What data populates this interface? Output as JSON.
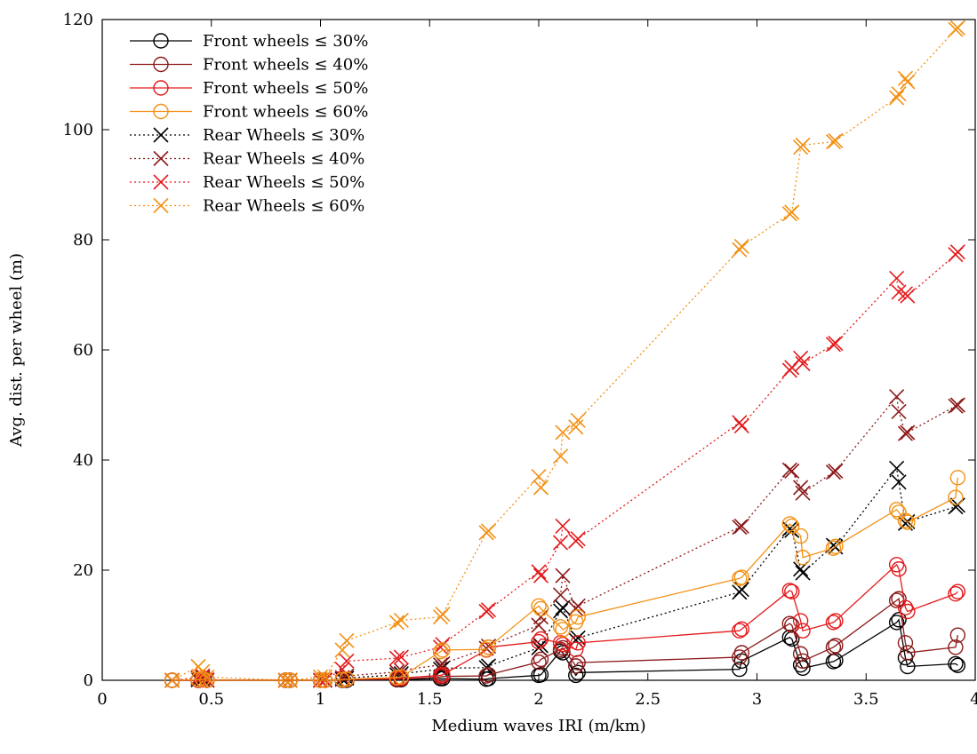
{
  "chart_data": {
    "type": "line",
    "title": "",
    "xlabel": "Medium waves IRI (m/km)",
    "ylabel": "Avg. dist. per wheel (m)",
    "xlim": [
      0,
      4
    ],
    "ylim": [
      0,
      120
    ],
    "xticks": [
      0,
      0.5,
      1,
      1.5,
      2,
      2.5,
      3,
      3.5,
      4
    ],
    "xtick_labels": [
      "0",
      "0.5",
      "1",
      "1.5",
      "2",
      "2.5",
      "3",
      "3.5",
      "4"
    ],
    "yticks": [
      0,
      20,
      40,
      60,
      80,
      100,
      120
    ],
    "ytick_labels": [
      "0",
      "20",
      "40",
      "60",
      "80",
      "100",
      "120"
    ],
    "grid": false,
    "legend_position": "top-left",
    "x": [
      0.32,
      0.44,
      0.46,
      0.48,
      0.84,
      0.86,
      1.0,
      1.02,
      1.1,
      1.12,
      1.35,
      1.37,
      1.55,
      1.56,
      1.76,
      1.77,
      2.0,
      2.01,
      2.1,
      2.11,
      2.17,
      2.18,
      2.92,
      2.93,
      3.15,
      3.16,
      3.2,
      3.21,
      3.35,
      3.36,
      3.64,
      3.65,
      3.68,
      3.69,
      3.91,
      3.92
    ],
    "series": [
      {
        "name": "Front wheels ≤ 30%",
        "color": "#000000",
        "line": "solid",
        "marker": "circle",
        "values": [
          0.0,
          0.0,
          0.1,
          0.0,
          0.0,
          0.0,
          0.0,
          0.0,
          0.0,
          0.0,
          0.1,
          0.1,
          0.3,
          0.3,
          0.2,
          0.3,
          0.9,
          1.0,
          5.3,
          5.0,
          0.9,
          1.4,
          2.0,
          3.5,
          7.8,
          7.5,
          2.8,
          2.2,
          3.4,
          3.6,
          10.5,
          11.0,
          4.1,
          2.5,
          3.0,
          2.7
        ]
      },
      {
        "name": "Front wheels ≤ 40%",
        "color": "#8b1a1a",
        "line": "solid",
        "marker": "circle",
        "values": [
          0.0,
          0.0,
          0.1,
          0.0,
          0.0,
          0.0,
          0.0,
          0.0,
          0.0,
          0.1,
          0.2,
          0.2,
          0.6,
          0.7,
          0.8,
          1.0,
          3.3,
          3.8,
          5.6,
          5.9,
          2.6,
          3.2,
          4.2,
          5.0,
          10.3,
          10.0,
          4.8,
          3.5,
          6.0,
          6.3,
          14.5,
          14.8,
          6.8,
          5.0,
          6.0,
          8.2
        ]
      },
      {
        "name": "Front wheels ≤ 50%",
        "color": "#e41a1c",
        "line": "solid",
        "marker": "circle",
        "values": [
          0.0,
          0.0,
          0.1,
          0.0,
          0.0,
          0.0,
          0.0,
          0.0,
          0.1,
          0.2,
          0.3,
          0.4,
          0.9,
          1.0,
          5.5,
          6.0,
          7.0,
          7.5,
          6.8,
          6.5,
          5.6,
          6.8,
          9.0,
          9.3,
          16.3,
          16.1,
          10.8,
          9.0,
          10.5,
          10.8,
          21.0,
          20.2,
          13.2,
          12.5,
          15.7,
          16.1
        ]
      },
      {
        "name": "Front wheels ≤ 60%",
        "color": "#f39014",
        "line": "solid",
        "marker": "circle",
        "values": [
          0.0,
          0.1,
          0.2,
          0.0,
          0.0,
          0.0,
          0.0,
          0.0,
          0.1,
          0.2,
          0.5,
          0.6,
          5.2,
          5.5,
          5.6,
          6.0,
          13.5,
          13.0,
          9.7,
          9.2,
          10.6,
          11.5,
          18.5,
          18.7,
          28.4,
          28.0,
          26.2,
          22.3,
          24.0,
          24.3,
          31.0,
          30.5,
          29.0,
          28.7,
          33.2,
          36.8
        ]
      },
      {
        "name": "Rear Wheels ≤ 30%",
        "color": "#000000",
        "line": "dotted",
        "marker": "x",
        "values": [
          0.0,
          0.1,
          0.2,
          0.0,
          0.0,
          0.0,
          0.0,
          0.0,
          0.2,
          0.4,
          1.0,
          1.2,
          2.0,
          2.2,
          2.3,
          2.6,
          5.9,
          6.3,
          12.6,
          13.2,
          7.3,
          7.7,
          16.0,
          16.5,
          27.5,
          27.2,
          20.2,
          19.5,
          24.5,
          24.2,
          38.5,
          36.0,
          28.5,
          28.8,
          31.5,
          31.8
        ]
      },
      {
        "name": "Rear Wheels ≤ 40%",
        "color": "#8b1a1a",
        "line": "dotted",
        "marker": "x",
        "values": [
          0.0,
          0.3,
          0.5,
          0.0,
          0.0,
          0.0,
          0.0,
          0.0,
          0.5,
          0.8,
          1.5,
          1.8,
          2.8,
          3.0,
          5.8,
          6.2,
          10.0,
          11.5,
          15.5,
          19.0,
          13.0,
          13.5,
          27.8,
          28.0,
          38.2,
          38.0,
          35.0,
          34.0,
          37.8,
          38.0,
          51.5,
          48.8,
          44.8,
          45.0,
          49.8,
          50.0
        ]
      },
      {
        "name": "Rear Wheels ≤ 50%",
        "color": "#e41a1c",
        "line": "dotted",
        "marker": "x",
        "values": [
          0.0,
          0.5,
          0.8,
          0.1,
          0.0,
          0.0,
          0.0,
          0.1,
          2.0,
          3.5,
          4.0,
          4.2,
          6.0,
          6.5,
          12.5,
          12.8,
          19.7,
          19.0,
          25.0,
          28.0,
          25.3,
          25.7,
          46.8,
          46.2,
          56.3,
          56.8,
          58.5,
          57.5,
          61.0,
          61.2,
          73.0,
          70.5,
          70.2,
          69.8,
          77.3,
          77.8
        ]
      },
      {
        "name": "Rear Wheels ≤ 60%",
        "color": "#f39014",
        "line": "dotted",
        "marker": "x",
        "values": [
          0.0,
          2.5,
          1.6,
          0.6,
          0.0,
          0.0,
          0.6,
          0.6,
          5.5,
          7.2,
          10.5,
          10.9,
          11.5,
          12.0,
          26.8,
          27.1,
          37.0,
          35.0,
          40.7,
          45.0,
          46.0,
          47.2,
          78.2,
          78.8,
          84.7,
          85.0,
          96.8,
          97.2,
          97.8,
          98.0,
          105.8,
          106.5,
          109.3,
          108.7,
          118.2,
          118.5
        ]
      }
    ]
  }
}
